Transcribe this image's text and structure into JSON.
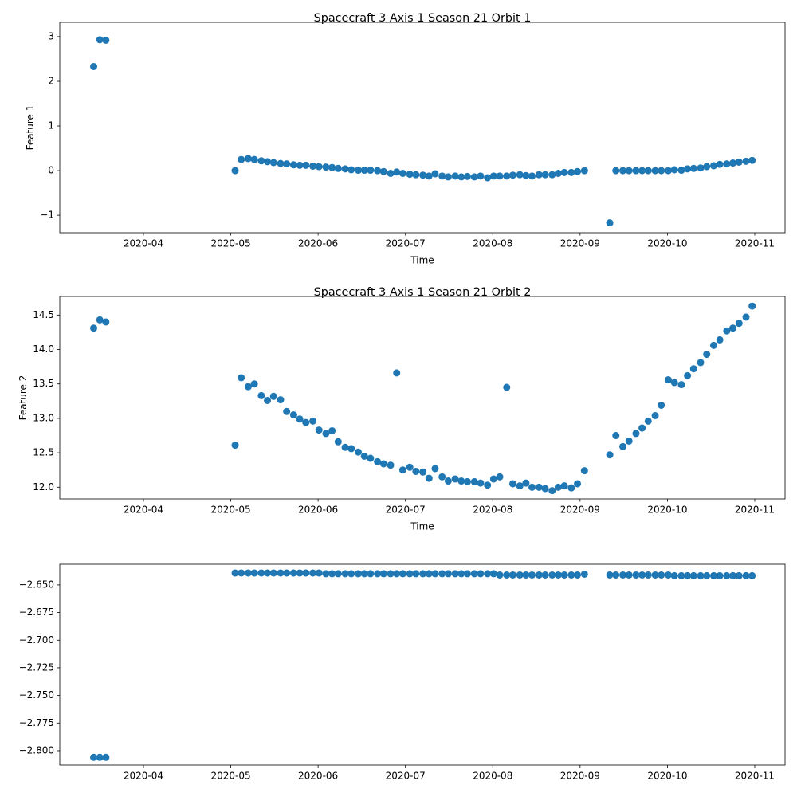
{
  "chart_data": [
    {
      "type": "scatter",
      "title": "Spacecraft 3 Axis 1 Season 21 Orbit 1",
      "x_label": "Time",
      "y_label": "Feature 1",
      "color": "#1f77b4",
      "x": [
        3.43,
        3.5,
        3.57,
        5.05,
        5.12,
        5.2,
        5.27,
        5.35,
        5.42,
        5.49,
        5.57,
        5.64,
        5.72,
        5.79,
        5.86,
        5.94,
        6.01,
        6.09,
        6.16,
        6.23,
        6.31,
        6.38,
        6.46,
        6.53,
        6.6,
        6.68,
        6.75,
        6.83,
        6.9,
        6.97,
        7.05,
        7.12,
        7.2,
        7.27,
        7.34,
        7.42,
        7.49,
        7.57,
        7.64,
        7.71,
        7.79,
        7.86,
        7.94,
        8.01,
        8.08,
        8.16,
        8.23,
        8.31,
        8.38,
        8.45,
        8.53,
        8.6,
        8.68,
        8.75,
        8.82,
        8.9,
        8.97,
        9.05,
        9.34,
        9.41,
        9.49,
        9.56,
        9.64,
        9.71,
        9.78,
        9.86,
        9.93,
        10.01,
        10.08,
        10.16,
        10.23,
        10.3,
        10.38,
        10.45,
        10.53,
        10.6,
        10.68,
        10.75,
        10.82,
        10.9,
        10.97
      ],
      "values": [
        2.33,
        2.93,
        2.92,
        0.0,
        0.25,
        0.27,
        0.25,
        0.22,
        0.2,
        0.18,
        0.16,
        0.15,
        0.13,
        0.12,
        0.12,
        0.1,
        0.09,
        0.08,
        0.07,
        0.05,
        0.04,
        0.02,
        0.01,
        0.01,
        0.01,
        0.0,
        -0.02,
        -0.06,
        -0.03,
        -0.06,
        -0.08,
        -0.09,
        -0.1,
        -0.12,
        -0.07,
        -0.12,
        -0.14,
        -0.12,
        -0.14,
        -0.13,
        -0.14,
        -0.12,
        -0.16,
        -0.12,
        -0.12,
        -0.12,
        -0.1,
        -0.09,
        -0.11,
        -0.12,
        -0.09,
        -0.09,
        -0.09,
        -0.06,
        -0.04,
        -0.04,
        -0.02,
        0.0,
        -1.17,
        0.0,
        0.0,
        0.0,
        0.0,
        0.0,
        0.0,
        0.0,
        0.0,
        0.0,
        0.02,
        0.01,
        0.04,
        0.05,
        0.06,
        0.09,
        0.11,
        0.14,
        0.15,
        0.17,
        0.19,
        0.21,
        0.23
      ],
      "xlim": [
        3.042,
        11.347
      ],
      "ylim": [
        -1.39,
        3.32
      ],
      "xticks": [
        {
          "value": 4,
          "label": "2020-04"
        },
        {
          "value": 5,
          "label": "2020-05"
        },
        {
          "value": 6,
          "label": "2020-06"
        },
        {
          "value": 7,
          "label": "2020-07"
        },
        {
          "value": 8,
          "label": "2020-08"
        },
        {
          "value": 9,
          "label": "2020-09"
        },
        {
          "value": 10,
          "label": "2020-10"
        },
        {
          "value": 11,
          "label": "2020-11"
        }
      ],
      "yticks": [
        {
          "value": -1,
          "label": "−1"
        },
        0,
        1,
        2,
        3
      ]
    },
    {
      "type": "scatter",
      "title": "Spacecraft 3 Axis 1 Season 21 Orbit 2",
      "x_label": "Time",
      "y_label": "Feature 2",
      "color": "#1f77b4",
      "x": [
        3.43,
        3.5,
        3.57,
        5.05,
        5.12,
        5.2,
        5.27,
        5.35,
        5.42,
        5.49,
        5.57,
        5.64,
        5.72,
        5.79,
        5.86,
        5.94,
        6.01,
        6.09,
        6.16,
        6.23,
        6.31,
        6.38,
        6.46,
        6.53,
        6.6,
        6.68,
        6.75,
        6.83,
        6.9,
        6.97,
        7.05,
        7.12,
        7.2,
        7.27,
        7.34,
        7.42,
        7.49,
        7.57,
        7.64,
        7.71,
        7.79,
        7.86,
        7.94,
        8.01,
        8.08,
        8.16,
        8.23,
        8.31,
        8.38,
        8.45,
        8.53,
        8.6,
        8.68,
        8.75,
        8.82,
        8.9,
        8.97,
        9.05,
        9.34,
        9.41,
        9.49,
        9.56,
        9.64,
        9.71,
        9.78,
        9.86,
        9.93,
        10.01,
        10.08,
        10.16,
        10.23,
        10.3,
        10.38,
        10.45,
        10.53,
        10.6,
        10.68,
        10.75,
        10.82,
        10.9,
        10.97
      ],
      "values": [
        14.31,
        14.43,
        14.4,
        12.61,
        13.59,
        13.46,
        13.5,
        13.33,
        13.26,
        13.32,
        13.27,
        13.1,
        13.05,
        12.99,
        12.94,
        12.96,
        12.83,
        12.78,
        12.82,
        12.66,
        12.58,
        12.56,
        12.51,
        12.45,
        12.42,
        12.37,
        12.34,
        12.32,
        13.66,
        12.25,
        12.29,
        12.23,
        12.22,
        12.13,
        12.27,
        12.15,
        12.09,
        12.12,
        12.09,
        12.08,
        12.08,
        12.06,
        12.03,
        12.12,
        12.15,
        13.45,
        12.05,
        12.02,
        12.06,
        12.0,
        12.0,
        11.98,
        11.95,
        12.0,
        12.02,
        11.99,
        12.05,
        12.24,
        12.47,
        12.75,
        12.59,
        12.67,
        12.78,
        12.86,
        12.96,
        13.04,
        13.19,
        13.56,
        13.52,
        13.49,
        13.62,
        13.72,
        13.81,
        13.93,
        14.06,
        14.14,
        14.27,
        14.31,
        14.38,
        14.47,
        14.63
      ],
      "xlim": [
        3.042,
        11.347
      ],
      "ylim": [
        11.83,
        14.77
      ],
      "xticks": [
        {
          "value": 4,
          "label": "2020-04"
        },
        {
          "value": 5,
          "label": "2020-05"
        },
        {
          "value": 6,
          "label": "2020-06"
        },
        {
          "value": 7,
          "label": "2020-07"
        },
        {
          "value": 8,
          "label": "2020-08"
        },
        {
          "value": 9,
          "label": "2020-09"
        },
        {
          "value": 10,
          "label": "2020-10"
        },
        {
          "value": 11,
          "label": "2020-11"
        }
      ],
      "yticks": [
        {
          "value": 12,
          "label": "12.0"
        },
        12.5,
        {
          "value": 13,
          "label": "13.0"
        },
        13.5,
        {
          "value": 14,
          "label": "14.0"
        },
        14.5
      ]
    },
    {
      "type": "scatter",
      "color": "#1f77b4",
      "x": [
        3.43,
        3.5,
        3.57,
        5.05,
        5.12,
        5.2,
        5.27,
        5.35,
        5.42,
        5.49,
        5.57,
        5.64,
        5.72,
        5.79,
        5.86,
        5.94,
        6.01,
        6.09,
        6.16,
        6.23,
        6.31,
        6.38,
        6.46,
        6.53,
        6.6,
        6.68,
        6.75,
        6.83,
        6.9,
        6.97,
        7.05,
        7.12,
        7.2,
        7.27,
        7.34,
        7.42,
        7.49,
        7.57,
        7.64,
        7.71,
        7.79,
        7.86,
        7.94,
        8.01,
        8.08,
        8.16,
        8.23,
        8.31,
        8.38,
        8.45,
        8.53,
        8.6,
        8.68,
        8.75,
        8.82,
        8.9,
        8.97,
        9.05,
        9.34,
        9.41,
        9.49,
        9.56,
        9.64,
        9.71,
        9.78,
        9.86,
        9.93,
        10.01,
        10.08,
        10.16,
        10.23,
        10.3,
        10.38,
        10.45,
        10.53,
        10.6,
        10.68,
        10.75,
        10.82,
        10.9,
        10.97
      ],
      "values": [
        -2.806,
        -2.806,
        -2.806,
        -2.6392,
        -2.6392,
        -2.6392,
        -2.6392,
        -2.6392,
        -2.6392,
        -2.6392,
        -2.6392,
        -2.6392,
        -2.6392,
        -2.6392,
        -2.6392,
        -2.6392,
        -2.6392,
        -2.6399,
        -2.6399,
        -2.6399,
        -2.6399,
        -2.6399,
        -2.6399,
        -2.6399,
        -2.6399,
        -2.6399,
        -2.6399,
        -2.6399,
        -2.6399,
        -2.6399,
        -2.6399,
        -2.6399,
        -2.6399,
        -2.6399,
        -2.6399,
        -2.6399,
        -2.6399,
        -2.6399,
        -2.6399,
        -2.6399,
        -2.6399,
        -2.6399,
        -2.6399,
        -2.6399,
        -2.641,
        -2.641,
        -2.641,
        -2.641,
        -2.641,
        -2.641,
        -2.641,
        -2.641,
        -2.641,
        -2.641,
        -2.641,
        -2.641,
        -2.641,
        -2.6403,
        -2.641,
        -2.641,
        -2.641,
        -2.641,
        -2.641,
        -2.641,
        -2.641,
        -2.641,
        -2.641,
        -2.641,
        -2.6417,
        -2.6417,
        -2.6417,
        -2.6417,
        -2.6417,
        -2.6417,
        -2.6417,
        -2.6417,
        -2.6417,
        -2.6417,
        -2.6417,
        -2.6417,
        -2.6417
      ],
      "xlim": [
        3.042,
        11.347
      ],
      "ylim": [
        -2.813,
        -2.6313
      ],
      "xticks": [
        {
          "value": 4,
          "label": "2020-04"
        },
        {
          "value": 5,
          "label": "2020-05"
        },
        {
          "value": 6,
          "label": "2020-06"
        },
        {
          "value": 7,
          "label": "2020-07"
        },
        {
          "value": 8,
          "label": "2020-08"
        },
        {
          "value": 9,
          "label": "2020-09"
        },
        {
          "value": 10,
          "label": "2020-10"
        },
        {
          "value": 11,
          "label": "2020-11"
        }
      ],
      "yticks": [
        {
          "value": -2.8,
          "label": "−2.800"
        },
        {
          "value": -2.775,
          "label": "−2.775"
        },
        {
          "value": -2.75,
          "label": "−2.750"
        },
        {
          "value": -2.725,
          "label": "−2.725"
        },
        {
          "value": -2.7,
          "label": "−2.700"
        },
        {
          "value": -2.675,
          "label": "−2.675"
        },
        {
          "value": -2.65,
          "label": "−2.650"
        }
      ]
    }
  ]
}
